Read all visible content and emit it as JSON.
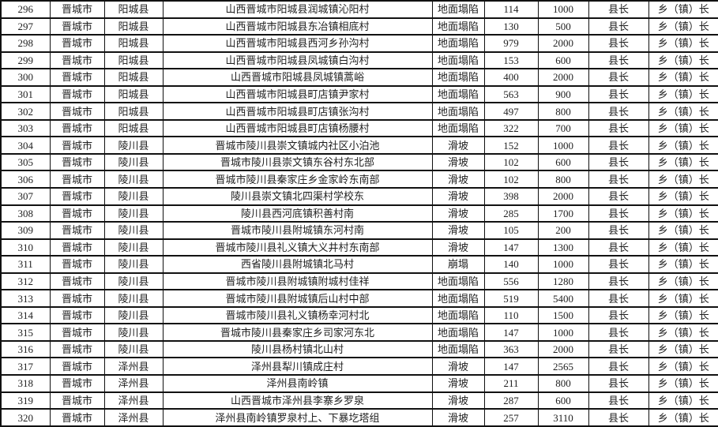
{
  "table": {
    "rows": [
      [
        "296",
        "晋城市",
        "阳城县",
        "山西晋城市阳城县润城镇沁阳村",
        "地面塌陷",
        "114",
        "1000",
        "县长",
        "乡（镇）长"
      ],
      [
        "297",
        "晋城市",
        "阳城县",
        "山西晋城市阳城县东冶镇相底村",
        "地面塌陷",
        "130",
        "500",
        "县长",
        "乡（镇）长"
      ],
      [
        "298",
        "晋城市",
        "阳城县",
        "山西晋城市阳城县西河乡孙沟村",
        "地面塌陷",
        "979",
        "2000",
        "县长",
        "乡（镇）长"
      ],
      [
        "299",
        "晋城市",
        "阳城县",
        "山西晋城市阳城县凤城镇白沟村",
        "地面塌陷",
        "153",
        "600",
        "县长",
        "乡（镇）长"
      ],
      [
        "300",
        "晋城市",
        "阳城县",
        "山西晋城市阳城县凤城镇蒿峪",
        "地面塌陷",
        "400",
        "2000",
        "县长",
        "乡（镇）长"
      ],
      [
        "301",
        "晋城市",
        "阳城县",
        "山西晋城市阳城县町店镇尹家村",
        "地面塌陷",
        "563",
        "900",
        "县长",
        "乡（镇）长"
      ],
      [
        "302",
        "晋城市",
        "阳城县",
        "山西晋城市阳城县町店镇张沟村",
        "地面塌陷",
        "497",
        "800",
        "县长",
        "乡（镇）长"
      ],
      [
        "303",
        "晋城市",
        "阳城县",
        "山西晋城市阳城县町店镇杨腰村",
        "地面塌陷",
        "322",
        "700",
        "县长",
        "乡（镇）长"
      ],
      [
        "304",
        "晋城市",
        "陵川县",
        "晋城市陵川县崇文镇城内社区小泊池",
        "滑坡",
        "152",
        "1000",
        "县长",
        "乡（镇）长"
      ],
      [
        "305",
        "晋城市",
        "陵川县",
        "晋城市陵川县崇文镇东谷村东北部",
        "滑坡",
        "102",
        "600",
        "县长",
        "乡（镇）长"
      ],
      [
        "306",
        "晋城市",
        "陵川县",
        "晋城市陵川县秦家庄乡金家岭东南部",
        "滑坡",
        "102",
        "800",
        "县长",
        "乡（镇）长"
      ],
      [
        "307",
        "晋城市",
        "陵川县",
        "陵川县崇文镇北四渠村学校东",
        "滑坡",
        "398",
        "2000",
        "县长",
        "乡（镇）长"
      ],
      [
        "308",
        "晋城市",
        "陵川县",
        "陵川县西河底镇积善村南",
        "滑坡",
        "285",
        "1700",
        "县长",
        "乡（镇）长"
      ],
      [
        "309",
        "晋城市",
        "陵川县",
        "晋城市陵川县附城镇东河村南",
        "滑坡",
        "105",
        "200",
        "县长",
        "乡（镇）长"
      ],
      [
        "310",
        "晋城市",
        "陵川县",
        "晋城市陵川县礼义镇大义井村东南部",
        "滑坡",
        "147",
        "1300",
        "县长",
        "乡（镇）长"
      ],
      [
        "311",
        "晋城市",
        "陵川县",
        "西省陵川县附城镇北马村",
        "崩塌",
        "140",
        "1000",
        "县长",
        "乡（镇）长"
      ],
      [
        "312",
        "晋城市",
        "陵川县",
        "晋城市陵川县附城镇附城村佳祥",
        "地面塌陷",
        "556",
        "1280",
        "县长",
        "乡（镇）长"
      ],
      [
        "313",
        "晋城市",
        "陵川县",
        "晋城市陵川县附城镇后山村中部",
        "地面塌陷",
        "519",
        "5400",
        "县长",
        "乡（镇）长"
      ],
      [
        "314",
        "晋城市",
        "陵川县",
        "晋城市陵川县礼义镇杨幸河村北",
        "地面塌陷",
        "110",
        "1500",
        "县长",
        "乡（镇）长"
      ],
      [
        "315",
        "晋城市",
        "陵川县",
        "晋城市陵川县秦家庄乡司家河东北",
        "地面塌陷",
        "147",
        "1000",
        "县长",
        "乡（镇）长"
      ],
      [
        "316",
        "晋城市",
        "陵川县",
        "陵川县杨村镇北山村",
        "地面塌陷",
        "363",
        "2000",
        "县长",
        "乡（镇）长"
      ],
      [
        "317",
        "晋城市",
        "泽州县",
        "泽州县犁川镇成庄村",
        "滑坡",
        "147",
        "2565",
        "县长",
        "乡（镇）长"
      ],
      [
        "318",
        "晋城市",
        "泽州县",
        "泽州县南岭镇",
        "滑坡",
        "211",
        "800",
        "县长",
        "乡（镇）长"
      ],
      [
        "319",
        "晋城市",
        "泽州县",
        "山西晋城市泽州县李寨乡罗泉",
        "滑坡",
        "287",
        "600",
        "县长",
        "乡（镇）长"
      ],
      [
        "320",
        "晋城市",
        "泽州县",
        "泽州县南岭镇罗泉村上、下暴圪塔组",
        "滑坡",
        "257",
        "3110",
        "县长",
        "乡（镇）长"
      ]
    ]
  }
}
